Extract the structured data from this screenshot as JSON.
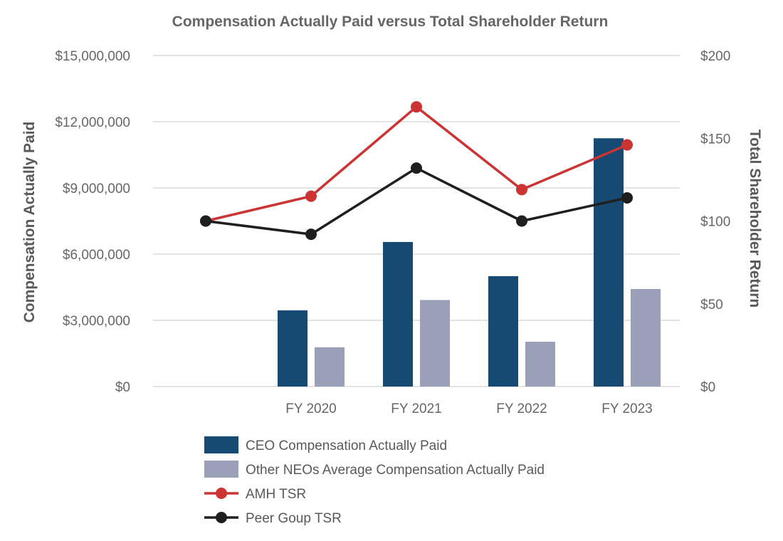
{
  "chart_data": {
    "type": "bar",
    "title": "Compensation Actually Paid versus Total Shareholder Return",
    "categories": [
      "",
      "FY 2020",
      "FY 2021",
      "FY 2022",
      "FY 2023"
    ],
    "y_left": {
      "label": "Compensation Actually Paid",
      "ylim": [
        0,
        15000000
      ],
      "ticks": [
        0,
        3000000,
        6000000,
        9000000,
        12000000,
        15000000
      ],
      "tick_labels": [
        "$0",
        "$3,000,000",
        "$6,000,000",
        "$9,000,000",
        "$12,000,000",
        "$15,000,000"
      ]
    },
    "y_right": {
      "label": "Total Shareholder Return",
      "ylim": [
        0,
        200
      ],
      "ticks": [
        0,
        50,
        100,
        150,
        200
      ],
      "tick_labels": [
        "$0",
        "$50",
        "$100",
        "$150",
        "$200"
      ]
    },
    "series": [
      {
        "name": "CEO Compensation Actually Paid",
        "kind": "bar",
        "axis": "left",
        "color": "#174a73",
        "values": [
          null,
          3450000,
          6550000,
          5000000,
          11250000
        ]
      },
      {
        "name": "Other NEOs Average Compensation Actually Paid",
        "kind": "bar",
        "axis": "left",
        "color": "#9aa0b7",
        "values": [
          null,
          1780000,
          3920000,
          2030000,
          4420000
        ]
      },
      {
        "name": "AMH TSR",
        "kind": "line",
        "axis": "right",
        "color": "#cc3333",
        "values": [
          100,
          115,
          169,
          119,
          146
        ]
      },
      {
        "name": "Peer Goup TSR",
        "kind": "line",
        "axis": "right",
        "color": "#1f1f1f",
        "values": [
          100,
          92,
          132,
          100,
          114
        ]
      }
    ],
    "grid": true,
    "legend_position": "bottom"
  }
}
